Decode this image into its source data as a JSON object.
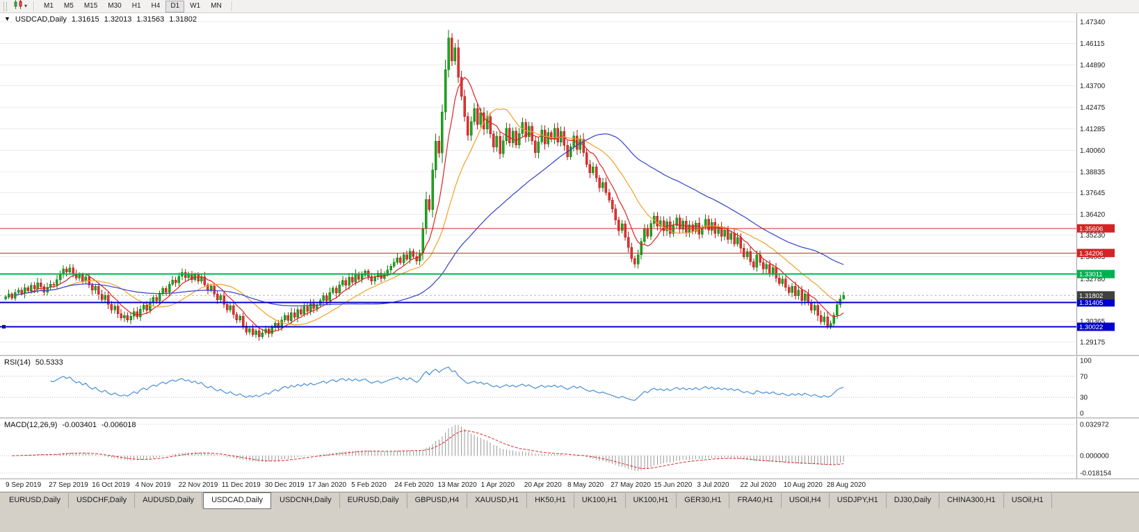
{
  "toolbar": {
    "timeframes": [
      "M1",
      "M5",
      "M15",
      "M30",
      "H1",
      "H4",
      "D1",
      "W1",
      "MN"
    ],
    "active_timeframe": "D1",
    "caret": "▾"
  },
  "chart": {
    "header": {
      "expand_arrow": "▼",
      "symbol": "USDCAD,Daily",
      "open": "1.31615",
      "high": "1.32013",
      "low": "1.31563",
      "close": "1.31802"
    }
  },
  "rsi_panel": {
    "label": "RSI(14)",
    "value": "50.5333"
  },
  "macd_panel": {
    "label": "MACD(12,26,9)",
    "value_main": "-0.003401",
    "value_signal": "-0.006018"
  },
  "tabs": [
    "EURUSD,Daily",
    "USDCHF,Daily",
    "AUDUSD,Daily",
    "USDCAD,Daily",
    "USDCNH,Daily",
    "EURUSD,Daily",
    "GBPUSD,H4",
    "XAUUSD,H1",
    "HK50,H1",
    "UK100,H1",
    "UK100,H1",
    "GER30,H1",
    "FRA40,H1",
    "USOil,H4",
    "USDJPY,H1",
    "DJ30,Daily",
    "CHINA300,H1",
    "USOil,H1"
  ],
  "active_tab_index": 3,
  "chart_data": {
    "type": "candlestick",
    "symbol": "USDCAD",
    "timeframe": "Daily",
    "price_axis_labels": [
      "1.47340",
      "1.46115",
      "1.44890",
      "1.43700",
      "1.42475",
      "1.41285",
      "1.40060",
      "1.38835",
      "1.37645",
      "1.36420",
      "1.35230",
      "1.34005",
      "1.32780",
      "1.31590",
      "1.30365",
      "1.29175"
    ],
    "date_axis_labels": [
      "9 Sep 2019",
      "27 Sep 2019",
      "16 Oct 2019",
      "4 Nov 2019",
      "22 Nov 2019",
      "11 Dec 2019",
      "30 Dec 2019",
      "17 Jan 2020",
      "5 Feb 2020",
      "24 Feb 2020",
      "13 Mar 2020",
      "1 Apr 2020",
      "20 Apr 2020",
      "8 May 2020",
      "27 May 2020",
      "15 Jun 2020",
      "3 Jul 2020",
      "22 Jul 2020",
      "10 Aug 2020",
      "28 Aug 2020"
    ],
    "closes": [
      1.3172,
      1.3188,
      1.3165,
      1.3196,
      1.321,
      1.3192,
      1.3224,
      1.3206,
      1.3238,
      1.3218,
      1.3252,
      1.323,
      1.3198,
      1.3226,
      1.3244,
      1.324,
      1.327,
      1.3302,
      1.333,
      1.3312,
      1.3336,
      1.3305,
      1.328,
      1.3296,
      1.3262,
      1.3285,
      1.324,
      1.321,
      1.3232,
      1.3186,
      1.3158,
      1.318,
      1.313,
      1.3098,
      1.312,
      1.3076,
      1.3052,
      1.3066,
      1.304,
      1.3062,
      1.3088,
      1.3058,
      1.3102,
      1.3126,
      1.3096,
      1.314,
      1.3168,
      1.315,
      1.3192,
      1.322,
      1.3198,
      1.3244,
      1.3268,
      1.3252,
      1.329,
      1.331,
      1.3282,
      1.3302,
      1.327,
      1.3296,
      1.3262,
      1.3286,
      1.324,
      1.321,
      1.3234,
      1.3188,
      1.3156,
      1.3178,
      1.313,
      1.3098,
      1.3122,
      1.3072,
      1.304,
      1.3062,
      1.3008,
      1.2972,
      1.2992,
      1.2958,
      1.298,
      1.2946,
      1.2968,
      1.299,
      1.2964,
      1.2998,
      1.3024,
      1.2996,
      1.304,
      1.3066,
      1.3038,
      1.3082,
      1.3056,
      1.31,
      1.3074,
      1.3118,
      1.309,
      1.3134,
      1.3106,
      1.3128,
      1.3152,
      1.3178,
      1.315,
      1.3196,
      1.3222,
      1.3194,
      1.324,
      1.3266,
      1.3238,
      1.3284,
      1.3256,
      1.33,
      1.3272,
      1.3296,
      1.3318,
      1.3288,
      1.3262,
      1.3286,
      1.3306,
      1.3278,
      1.33,
      1.3324,
      1.3346,
      1.3368,
      1.3394,
      1.3366,
      1.3412,
      1.3386,
      1.343,
      1.3402,
      1.3376,
      1.3422,
      1.356,
      1.3724,
      1.3668,
      1.3892,
      1.4056,
      1.3988,
      1.422,
      1.4462,
      1.464,
      1.451,
      1.4586,
      1.4418,
      1.431,
      1.4196,
      1.4088,
      1.4166,
      1.424,
      1.415,
      1.4218,
      1.4124,
      1.4196,
      1.4096,
      1.4022,
      1.4084,
      1.3984,
      1.4058,
      1.4128,
      1.4046,
      1.4112,
      1.4034,
      1.4098,
      1.4162,
      1.408,
      1.414,
      1.4058,
      1.399,
      1.4052,
      1.4118,
      1.404,
      1.4104,
      1.4066,
      1.4128,
      1.405,
      1.411,
      1.4032,
      1.3966,
      1.4024,
      1.4086,
      1.4008,
      1.4068,
      1.399,
      1.3924,
      1.3876,
      1.391,
      1.3846,
      1.3792,
      1.3822,
      1.3764,
      1.372,
      1.3672,
      1.3608,
      1.3548,
      1.3586,
      1.351,
      1.3452,
      1.339,
      1.3358,
      1.3412,
      1.3486,
      1.356,
      1.3516,
      1.3588,
      1.363,
      1.3572,
      1.3604,
      1.3548,
      1.3598,
      1.3532,
      1.3576,
      1.362,
      1.3556,
      1.3602,
      1.354,
      1.358,
      1.3544,
      1.359,
      1.3528,
      1.3566,
      1.3612,
      1.355,
      1.3594,
      1.3532,
      1.357,
      1.3516,
      1.3552,
      1.3498,
      1.3534,
      1.3472,
      1.351,
      1.3448,
      1.34,
      1.3428,
      1.3372,
      1.334,
      1.3412,
      1.3368,
      1.333,
      1.3356,
      1.3302,
      1.3338,
      1.328,
      1.3248,
      1.3274,
      1.3226,
      1.3196,
      1.3232,
      1.3178,
      1.321,
      1.3152,
      1.3188,
      1.314,
      1.3096,
      1.3124,
      1.3066,
      1.303,
      1.3058,
      1.3006,
      1.3022,
      1.3068,
      1.3128,
      1.3161,
      1.318
    ],
    "last_ohlc": {
      "open": 1.31615,
      "high": 1.32013,
      "low": 1.31563,
      "close": 1.31802
    },
    "levels": [
      {
        "label": "1.35606",
        "price": 1.35606,
        "color": "#d22424",
        "width": 1
      },
      {
        "label": "1.34206",
        "price": 1.34206,
        "color": "#d22424",
        "width": 1
      },
      {
        "label": "1.33011",
        "price": 1.33011,
        "color": "#00b050",
        "width": 2
      },
      {
        "label": "1.31405",
        "price": 1.31405,
        "color": "#0000cc",
        "width": 2
      },
      {
        "label": "1.30022",
        "price": 1.30022,
        "color": "#0000cc",
        "width": 2,
        "handles": true
      }
    ],
    "current_price": {
      "label": "1.31802",
      "price": 1.31802,
      "color": "#404040"
    },
    "moving_averages": [
      {
        "name": "fast",
        "period": 8,
        "color": "#dd2222"
      },
      {
        "name": "medium",
        "period": 20,
        "color": "#f0a028"
      },
      {
        "name": "slow",
        "period": 55,
        "color": "#3340cc"
      }
    ],
    "candle_colors": {
      "up": "#1fa51f",
      "up_stroke": "#0c7a0c",
      "down": "#e23232",
      "down_stroke": "#b01616"
    },
    "rsi": {
      "period": 14,
      "value": 50.5333,
      "axis_labels": [
        "100",
        "70",
        "30",
        "0"
      ],
      "level_lines": [
        70,
        30
      ],
      "color": "#4a8fd4"
    },
    "macd": {
      "fast": 12,
      "slow": 26,
      "signal": 9,
      "value": -0.003401,
      "signal_value": -0.006018,
      "axis_labels": [
        "0.032972",
        "0.000000",
        "-0.018154"
      ],
      "histogram_color": "#9a9a9a",
      "signal_color": "#d42a2a"
    }
  }
}
